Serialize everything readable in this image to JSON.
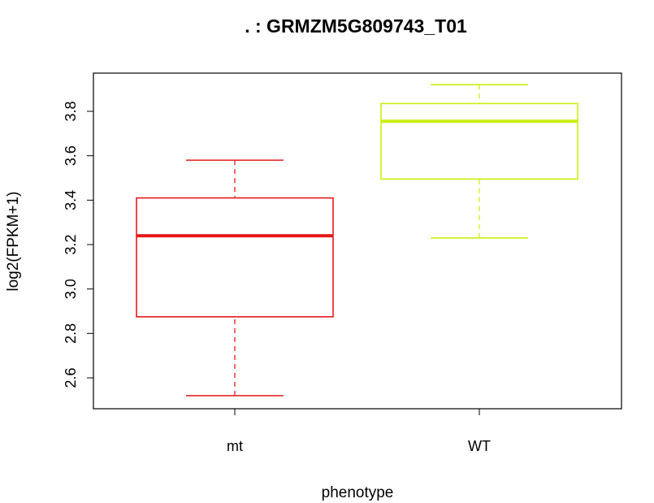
{
  "chart_data": {
    "type": "boxplot",
    "title": ". : GRMZM5G809743_T01",
    "xlabel": "phenotype",
    "ylabel": "log2(FPKM+1)",
    "ylim": [
      2.45,
      3.97
    ],
    "yticks": [
      "2.6",
      "2.8",
      "3.0",
      "3.2",
      "3.4",
      "3.6",
      "3.8"
    ],
    "categories": [
      "mt",
      "WT"
    ],
    "boxes": [
      {
        "category": "mt",
        "color": "#e41a1c",
        "min": 2.52,
        "q1": 2.875,
        "median": 3.24,
        "q3": 3.41,
        "max": 3.58
      },
      {
        "category": "WT",
        "color": "#ccee11",
        "min": 3.23,
        "q1": 3.495,
        "median": 3.755,
        "q3": 3.835,
        "max": 3.92
      }
    ],
    "grid": false,
    "legend": "none"
  }
}
